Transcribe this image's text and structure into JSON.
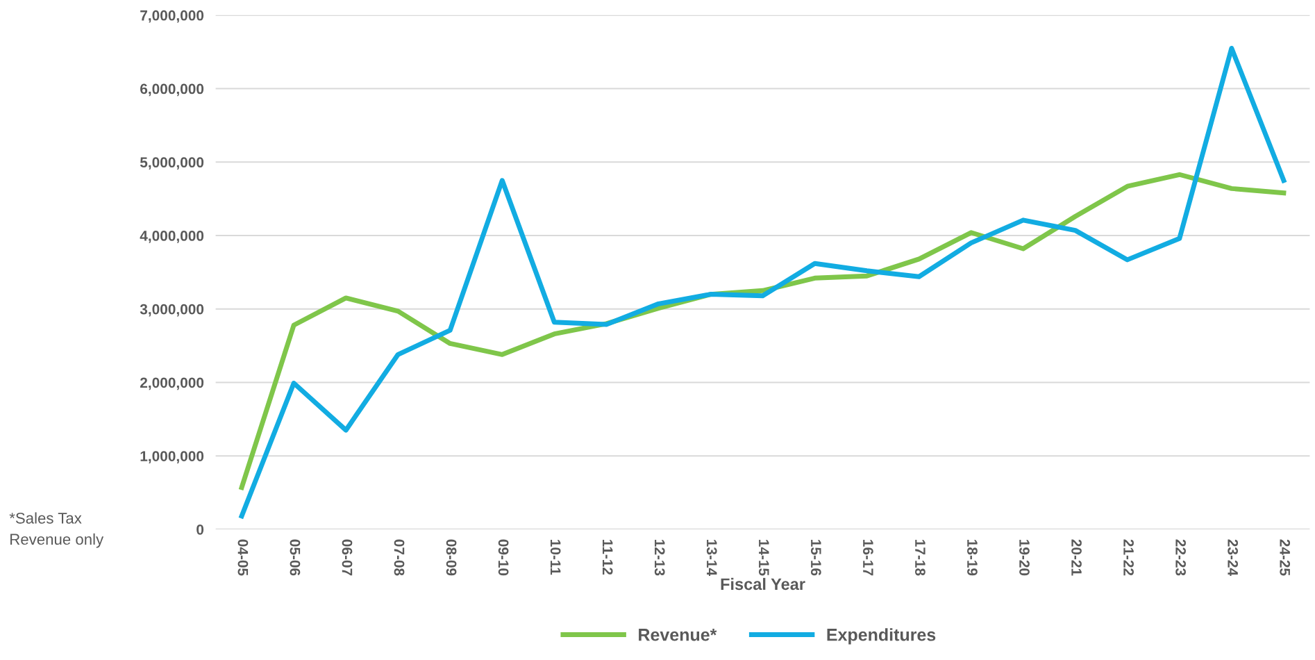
{
  "chart_data": {
    "type": "line",
    "xlabel": "Fiscal Year",
    "categories": [
      "04-05",
      "05-06",
      "06-07",
      "07-08",
      "08-09",
      "09-10",
      "10-11",
      "11-12",
      "12-13",
      "13-14",
      "14-15",
      "15-16",
      "16-17",
      "17-18",
      "18-19",
      "19-20",
      "20-21",
      "21-22",
      "22-23",
      "23-24",
      "24-25"
    ],
    "series": [
      {
        "name": "Revenue*",
        "color": "#7fc64a",
        "values": [
          570000,
          2780000,
          3150000,
          2970000,
          2530000,
          2380000,
          2660000,
          2800000,
          3010000,
          3200000,
          3250000,
          3420000,
          3450000,
          3680000,
          4040000,
          3820000,
          4260000,
          4670000,
          4830000,
          4640000,
          4580000
        ]
      },
      {
        "name": "Expenditures",
        "color": "#12ace2",
        "values": [
          180000,
          1990000,
          1350000,
          2380000,
          2710000,
          4750000,
          2820000,
          2790000,
          3070000,
          3200000,
          3180000,
          3620000,
          3520000,
          3440000,
          3900000,
          4210000,
          4070000,
          3670000,
          3960000,
          6550000,
          4750000
        ]
      }
    ],
    "ylim": [
      0,
      7000000
    ],
    "yticks": [
      {
        "value": 0,
        "label": "0"
      },
      {
        "value": 1000000,
        "label": "1,000,000"
      },
      {
        "value": 2000000,
        "label": "2,000,000"
      },
      {
        "value": 3000000,
        "label": "3,000,000"
      },
      {
        "value": 4000000,
        "label": "4,000,000"
      },
      {
        "value": 5000000,
        "label": "5,000,000"
      },
      {
        "value": 6000000,
        "label": "6,000,000"
      },
      {
        "value": 7000000,
        "label": "7,000,000"
      }
    ],
    "grid": "y",
    "legend": "bottom",
    "marker": "none",
    "line_style": "solid",
    "annotations": [
      "*Sales Tax\nRevenue only"
    ]
  }
}
